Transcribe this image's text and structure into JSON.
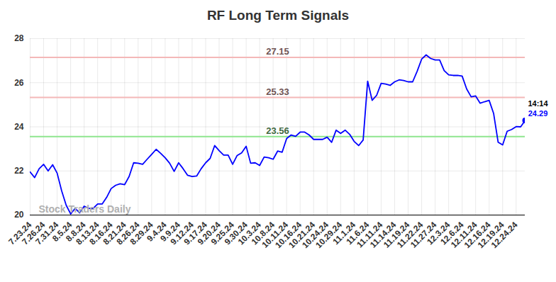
{
  "chart_data": {
    "type": "line",
    "title": "RF Long Term Signals",
    "categories": [
      "7.23.24",
      null,
      null,
      "7.26.24",
      null,
      null,
      "7.31.24",
      null,
      null,
      "8.5.24",
      null,
      null,
      "8.8.24",
      null,
      null,
      "8.13.24",
      null,
      null,
      "8.16.24",
      null,
      null,
      "8.21.24",
      null,
      null,
      "8.26.24",
      null,
      null,
      "8.29.24",
      null,
      null,
      "9.4.24",
      null,
      null,
      "9.9.24",
      null,
      null,
      "9.12.24",
      null,
      null,
      "9.17.24",
      null,
      null,
      "9.20.24",
      null,
      null,
      "9.25.24",
      null,
      null,
      "9.30.24",
      null,
      null,
      "10.3.24",
      null,
      null,
      "10.8.24",
      null,
      null,
      "10.11.24",
      null,
      null,
      "10.16.24",
      null,
      null,
      "10.21.24",
      null,
      null,
      "10.24.24",
      null,
      null,
      "10.29.24",
      null,
      null,
      "11.1.24",
      null,
      null,
      "11.6.24",
      null,
      null,
      "11.11.24",
      null,
      null,
      "11.14.24",
      null,
      null,
      "11.19.24",
      null,
      null,
      "11.22.24",
      null,
      null,
      "11.27.24",
      null,
      null,
      "12.3.24",
      null,
      null,
      "12.6.24",
      null,
      null,
      "12.11.24",
      null,
      null,
      "12.16.24",
      null,
      null,
      "12.19.24",
      null,
      null,
      "12.24.24",
      null,
      null
    ],
    "series": [
      {
        "name": "RF",
        "color": "#0000ff",
        "marker": "circle",
        "values": [
          21.95,
          21.7,
          22.1,
          22.3,
          22.0,
          22.28,
          21.9,
          21.1,
          20.45,
          20.05,
          20.3,
          20.1,
          20.4,
          20.3,
          20.3,
          20.5,
          20.5,
          20.8,
          21.2,
          21.35,
          21.42,
          21.38,
          21.75,
          22.37,
          22.35,
          22.3,
          22.53,
          22.75,
          22.98,
          22.8,
          22.6,
          22.35,
          21.98,
          22.37,
          22.1,
          21.8,
          21.75,
          21.77,
          22.1,
          22.37,
          22.57,
          23.15,
          22.92,
          22.72,
          22.72,
          22.3,
          22.7,
          22.82,
          23.12,
          22.35,
          22.37,
          22.25,
          22.63,
          22.6,
          22.53,
          22.9,
          22.85,
          23.47,
          23.63,
          23.57,
          23.76,
          23.76,
          23.63,
          23.43,
          23.43,
          23.43,
          23.53,
          23.3,
          23.85,
          23.7,
          23.85,
          23.66,
          23.34,
          23.15,
          23.4,
          26.07,
          25.2,
          25.43,
          25.97,
          25.94,
          25.88,
          26.04,
          26.13,
          26.1,
          26.04,
          26.04,
          26.52,
          27.07,
          27.26,
          27.1,
          27.03,
          27.03,
          26.55,
          26.36,
          26.33,
          26.33,
          26.3,
          25.72,
          25.36,
          25.4,
          25.07,
          25.14,
          25.2,
          24.6,
          23.3,
          23.18,
          23.8,
          23.88,
          24.01,
          24.0,
          24.29
        ]
      }
    ],
    "reference_lines": [
      {
        "value": 27.15,
        "label": "27.15",
        "color": "#f4b8b8"
      },
      {
        "value": 25.33,
        "label": "25.33",
        "color": "#f4b8b8"
      },
      {
        "value": 23.56,
        "label": "23.56",
        "color": "#8ee68e"
      }
    ],
    "last_label": "14:14",
    "watermark": "Stock Traders Daily",
    "ylim": [
      20,
      28
    ],
    "yticks": [
      20,
      22,
      24,
      26,
      28
    ],
    "grid": true
  }
}
